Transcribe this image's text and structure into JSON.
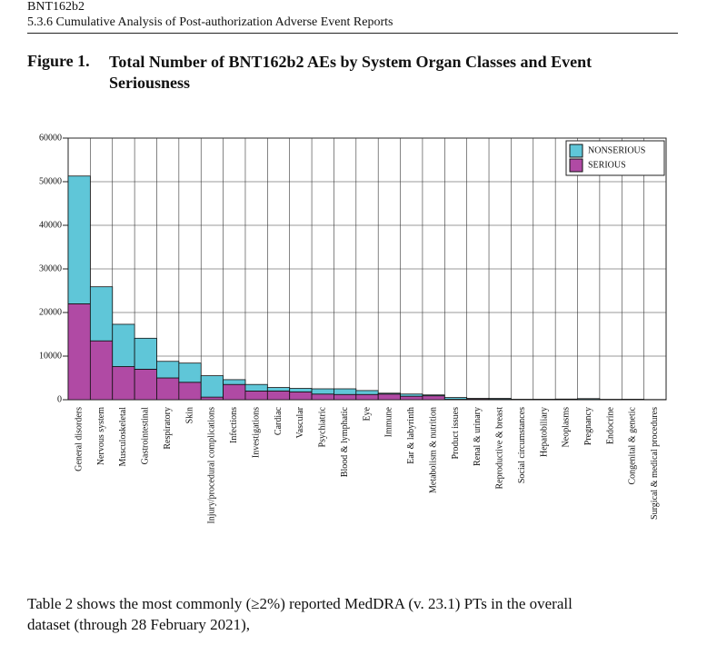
{
  "header": {
    "product": "BNT162b2",
    "section": "5.3.6 Cumulative Analysis of Post-authorization Adverse Event Reports"
  },
  "figure": {
    "label": "Figure 1.",
    "title": "Total Number of BNT162b2 AEs by System Organ Classes and Event Seriousness"
  },
  "chart_data": {
    "type": "stacked_bar",
    "categories": [
      "General disorders",
      "Nervous system",
      "Musculoskeletal",
      "Gastrointestinal",
      "Respiratory",
      "Skin",
      "Injury/procedural complications",
      "Infections",
      "Investigations",
      "Cardiac",
      "Vascular",
      "Psychiatric",
      "Blood & lymphatic",
      "Eye",
      "Immune",
      "Ear & labyrinth",
      "Metabolism & nutrition",
      "Product issues",
      "Renal & urinary",
      "Reproductive & breast",
      "Social circumstances",
      "Hepatobiliary",
      "Neoplasms",
      "Pregnancy",
      "Endocrine",
      "Congenital & genetic",
      "Surgical & medical procedures"
    ],
    "series": [
      {
        "name": "NONSERIOUS",
        "color": "#5fc6d8",
        "values": [
          29300,
          12400,
          9700,
          7100,
          3800,
          4400,
          4900,
          1100,
          1500,
          800,
          800,
          1200,
          1300,
          900,
          200,
          500,
          200,
          400,
          100,
          200,
          50,
          20,
          20,
          200,
          20,
          30,
          30
        ]
      },
      {
        "name": "SERIOUS",
        "color": "#b04aa4",
        "values": [
          22000,
          13500,
          7600,
          7000,
          5000,
          4000,
          600,
          3500,
          2000,
          2000,
          1800,
          1300,
          1200,
          1200,
          1300,
          800,
          900,
          100,
          200,
          100,
          50,
          80,
          130,
          50,
          60,
          70,
          20
        ]
      }
    ],
    "ylim": [
      0,
      60000
    ],
    "yticks": [
      0,
      10000,
      20000,
      30000,
      40000,
      50000,
      60000
    ],
    "grid": true,
    "legend": "top-right"
  },
  "body": {
    "lines": [
      "Table 2 shows the most commonly (≥2%) reported MedDRA (v. 23.1) PTs in the overall",
      "dataset (through 28 February 2021),"
    ]
  }
}
